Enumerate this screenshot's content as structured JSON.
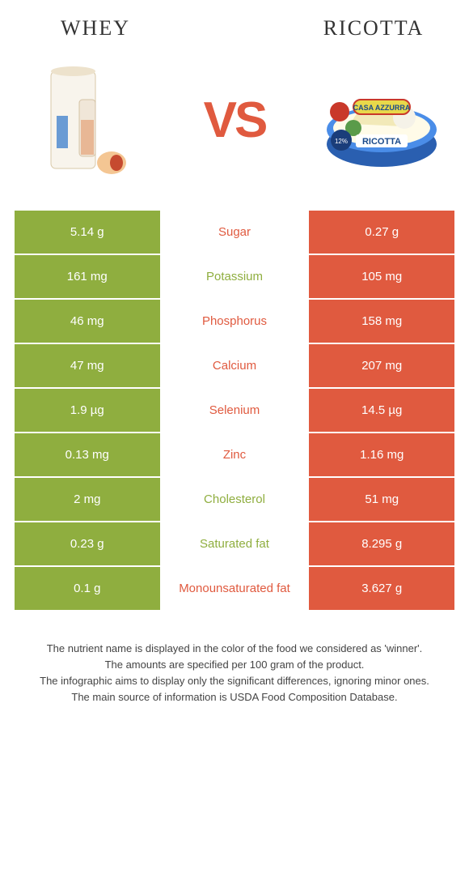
{
  "left_food": "Whey",
  "right_food": "Ricotta",
  "vs_text": "VS",
  "colors": {
    "left_bg": "#8fae3f",
    "right_bg": "#e05a3f",
    "text_white": "#ffffff"
  },
  "rows": [
    {
      "left": "5.14 g",
      "label": "Sugar",
      "right": "0.27 g",
      "winner": "right"
    },
    {
      "left": "161 mg",
      "label": "Potassium",
      "right": "105 mg",
      "winner": "left"
    },
    {
      "left": "46 mg",
      "label": "Phosphorus",
      "right": "158 mg",
      "winner": "right"
    },
    {
      "left": "47 mg",
      "label": "Calcium",
      "right": "207 mg",
      "winner": "right"
    },
    {
      "left": "1.9 µg",
      "label": "Selenium",
      "right": "14.5 µg",
      "winner": "right"
    },
    {
      "left": "0.13 mg",
      "label": "Zinc",
      "right": "1.16 mg",
      "winner": "right"
    },
    {
      "left": "2 mg",
      "label": "Cholesterol",
      "right": "51 mg",
      "winner": "left"
    },
    {
      "left": "0.23 g",
      "label": "Saturated fat",
      "right": "8.295 g",
      "winner": "left"
    },
    {
      "left": "0.1 g",
      "label": "Monounsaturated fat",
      "right": "3.627 g",
      "winner": "right"
    }
  ],
  "footer_lines": [
    "The nutrient name is displayed in the color of the food we considered as 'winner'.",
    "The amounts are specified per 100 gram of the product.",
    "The infographic aims to display only the significant differences, ignoring minor ones.",
    "The main source of information is USDA Food Composition Database."
  ]
}
